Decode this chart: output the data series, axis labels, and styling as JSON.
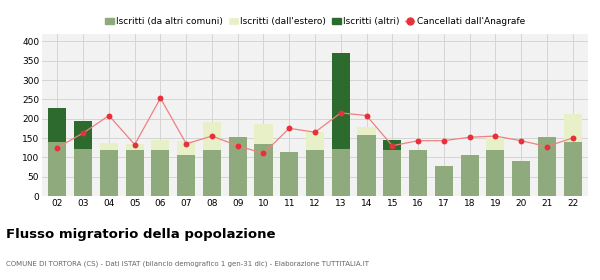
{
  "years": [
    "02",
    "03",
    "04",
    "05",
    "06",
    "07",
    "08",
    "09",
    "10",
    "11",
    "12",
    "13",
    "14",
    "15",
    "16",
    "17",
    "18",
    "19",
    "20",
    "21",
    "22"
  ],
  "iscritti_comuni": [
    140,
    122,
    118,
    118,
    118,
    107,
    120,
    152,
    135,
    115,
    118,
    122,
    157,
    118,
    118,
    78,
    107,
    118,
    90,
    152,
    140
  ],
  "iscritti_estero": [
    0,
    0,
    20,
    16,
    26,
    36,
    72,
    0,
    52,
    0,
    48,
    0,
    22,
    28,
    0,
    0,
    0,
    32,
    0,
    0,
    72
  ],
  "iscritti_altri": [
    88,
    72,
    0,
    0,
    0,
    0,
    0,
    0,
    0,
    0,
    0,
    248,
    0,
    28,
    0,
    0,
    0,
    0,
    0,
    0,
    0
  ],
  "cancellati": [
    125,
    163,
    208,
    133,
    253,
    135,
    155,
    130,
    110,
    175,
    165,
    215,
    208,
    130,
    143,
    143,
    152,
    155,
    143,
    128,
    150
  ],
  "color_comuni": "#8faa7c",
  "color_estero": "#e8f0c8",
  "color_altri": "#2d6a2d",
  "color_cancellati": "#e8303a",
  "color_line": "#f08080",
  "bg_color": "#f2f2f2",
  "grid_color": "#d5d5d5",
  "ylim": [
    0,
    420
  ],
  "yticks": [
    0,
    50,
    100,
    150,
    200,
    250,
    300,
    350,
    400
  ],
  "title": "Flusso migratorio della popolazione",
  "subtitle": "COMUNE DI TORTORA (CS) - Dati ISTAT (bilancio demografico 1 gen-31 dic) - Elaborazione TUTTITALIA.IT",
  "legend_labels": [
    "Iscritti (da altri comuni)",
    "Iscritti (dall'estero)",
    "Iscritti (altri)",
    "Cancellati dall'Anagrafe"
  ]
}
